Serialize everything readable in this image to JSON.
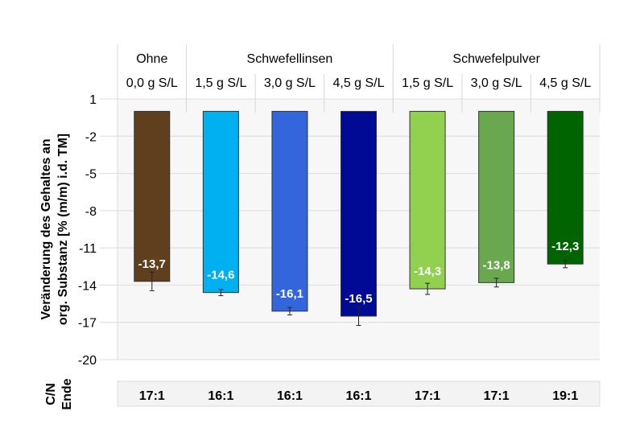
{
  "chart_data": {
    "type": "bar",
    "ylabel_lines": [
      "Veränderung des Gehaltes an",
      "org. Substanz [% (m/m) i.d. TM]"
    ],
    "ylim": [
      -20,
      1
    ],
    "yticks": [
      1,
      -2,
      -5,
      -8,
      -11,
      -14,
      -17,
      -20
    ],
    "ytick_labels": [
      "1",
      "-2",
      "-5",
      "-8",
      "-11",
      "-14",
      "-17",
      "-20"
    ],
    "groups": [
      {
        "label": "Ohne",
        "span": 1
      },
      {
        "label": "Schwefellinsen",
        "span": 3
      },
      {
        "label": "Schwefelpulver",
        "span": 3
      }
    ],
    "categories": [
      "0,0 g S/L",
      "1,5 g S/L",
      "3,0 g S/L",
      "4,5 g S/L",
      "1,5 g S/L",
      "3,0 g S/L",
      "4,5 g S/L"
    ],
    "values": [
      -13.7,
      -14.6,
      -16.1,
      -16.5,
      -14.3,
      -13.8,
      -12.3
    ],
    "value_labels": [
      "-13,7",
      "-14,6",
      "-16,1",
      "-16,5",
      "-14,3",
      "-13,8",
      "-12,3"
    ],
    "errors": [
      0.75,
      0.25,
      0.3,
      0.75,
      0.45,
      0.35,
      0.3
    ],
    "colors": [
      "#5f3f1e",
      "#00b0f0",
      "#3366dd",
      "#000a94",
      "#92d050",
      "#6aa84f",
      "#006400"
    ],
    "cn_label_lines": [
      "C/N",
      "Ende"
    ],
    "cn_values": [
      "17:1",
      "16:1",
      "16:1",
      "16:1",
      "17:1",
      "17:1",
      "19:1"
    ],
    "grid": true
  }
}
